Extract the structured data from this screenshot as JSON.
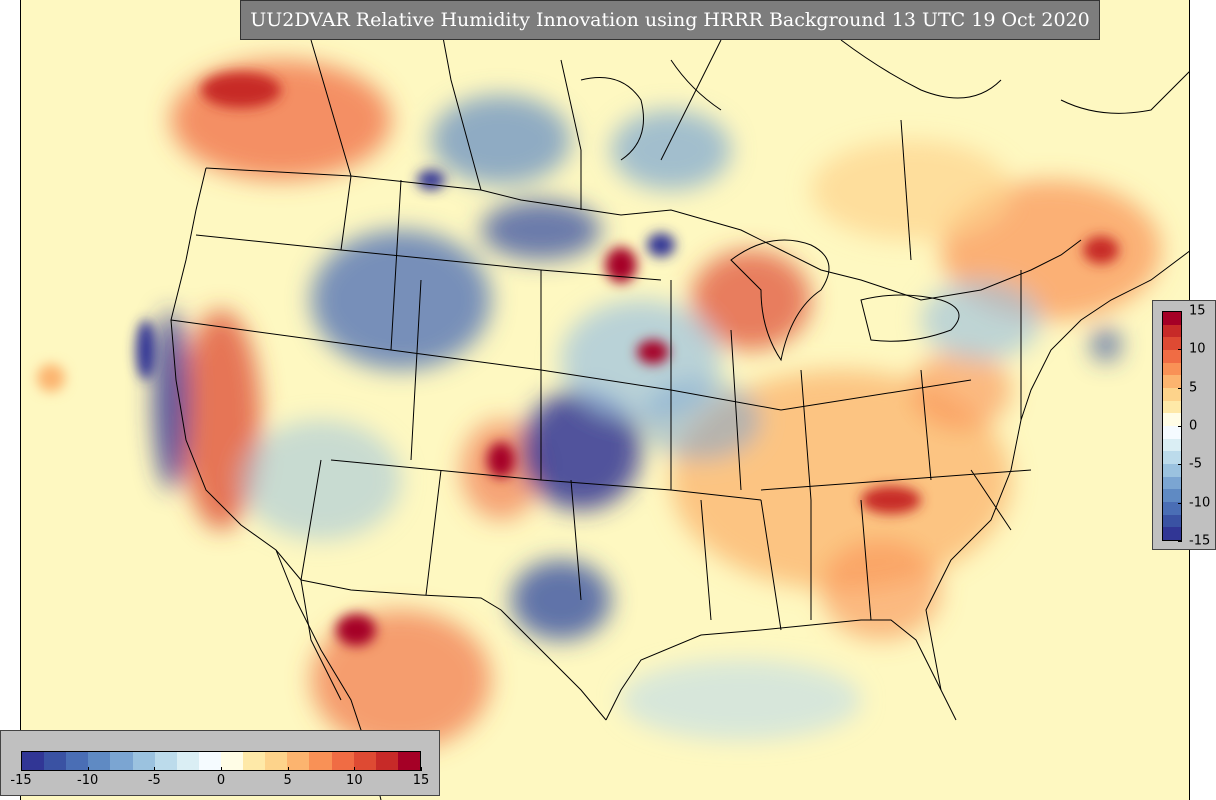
{
  "title": "UU2DVAR Relative Humidity Innovation using HRRR Background 13 UTC 19 Oct 2020",
  "colorbar": {
    "ticks": [
      "-15",
      "-10",
      "-5",
      "0",
      "5",
      "10",
      "15"
    ],
    "range": [
      -15,
      15
    ],
    "colors": [
      "#313695",
      "#3a52a3",
      "#4a6eb5",
      "#5f8ac3",
      "#7ba5d2",
      "#9bc2df",
      "#bcdbeb",
      "#daeef4",
      "#f5fbff",
      "#fffde6",
      "#fee9a8",
      "#fdd38b",
      "#fcb46f",
      "#f99156",
      "#f06c44",
      "#de4a33",
      "#c72a28",
      "#a50026"
    ]
  },
  "map": {
    "background_color": "#fef8c1",
    "boundary_color": "#000000"
  }
}
